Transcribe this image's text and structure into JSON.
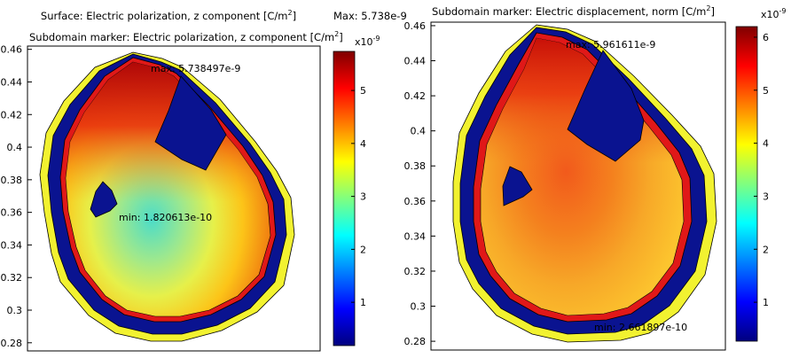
{
  "colors": {
    "dark_blue": "#0a1390",
    "bright_red": "#e01818",
    "yellow": "#f2f230",
    "frame": "#000000"
  },
  "left_plot": {
    "header_line1": "Surface: Electric polarization, z component [C/m",
    "header_line1_sup": "2",
    "header_line1_tail": "]",
    "header_max": "Max: 5.738e-9",
    "header_line2": "Subdomain marker: Electric polarization, z component [C/m",
    "header_line2_sup": "2",
    "header_line2_tail": "]",
    "max_label": "max: 5.738497e-9",
    "min_label": "min: 1.820613e-10",
    "colorbar_exponent": "x10",
    "colorbar_exponent_sup": "-9"
  },
  "right_plot": {
    "header_line1": "Subdomain marker: Electric displacement, norm [C/m",
    "header_line1_sup": "2",
    "header_line1_tail": "]",
    "max_label": "max: 5.961611e-9",
    "min_label": "min: 2.661897e-10",
    "colorbar_exponent": "x10",
    "colorbar_exponent_sup": "-9"
  },
  "chart_data": [
    {
      "type": "heatmap",
      "title": "Surface: Electric polarization, z component [C/m2]",
      "subtitle": "Subdomain marker: Electric polarization, z component [C/m2]",
      "y_ticks": [
        0.46,
        0.44,
        0.42,
        0.4,
        0.38,
        0.36,
        0.34,
        0.32,
        0.3,
        0.28
      ],
      "ylim": [
        0.275,
        0.462
      ],
      "colorbar": {
        "ticks": [
          1,
          2,
          3,
          4,
          5
        ],
        "range": [
          0.182,
          5.738
        ],
        "exponent": "x10-9",
        "colormap": "jet"
      },
      "max": "5.738497e-9",
      "min": "1.820613e-10",
      "header_max": "Max: 5.738e-9"
    },
    {
      "type": "heatmap",
      "title": "Subdomain marker: Electric displacement, norm [C/m2]",
      "y_ticks": [
        0.46,
        0.44,
        0.42,
        0.4,
        0.38,
        0.36,
        0.34,
        0.32,
        0.3,
        0.28
      ],
      "ylim": [
        0.275,
        0.462
      ],
      "colorbar": {
        "ticks": [
          1,
          2,
          3,
          4,
          5,
          6
        ],
        "range": [
          0.266,
          6.2
        ],
        "exponent": "x10-9",
        "colormap": "jet"
      },
      "max": "5.961611e-9",
      "min": "2.661897e-10"
    }
  ]
}
